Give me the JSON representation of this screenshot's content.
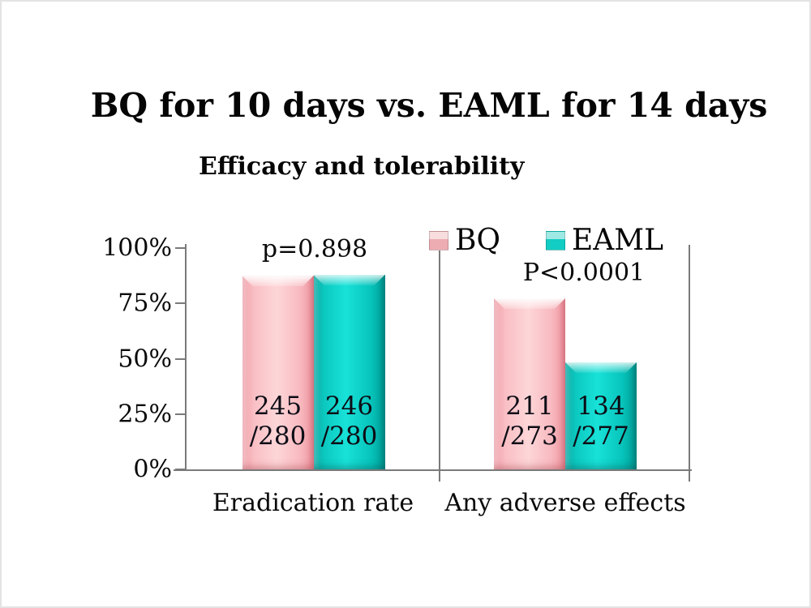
{
  "slide": {
    "title": "BQ for 10 days vs. EAML for 14 days",
    "subtitle": "Efficacy and tolerability"
  },
  "colors": {
    "bq": "#f7b3ba",
    "eaml": "#0fd0c6",
    "axis": "#7a7a7a",
    "text": "#0a0a0a"
  },
  "chart_data": {
    "type": "bar",
    "title": "Efficacy and tolerability",
    "categories": [
      "Eradication rate",
      "Any adverse effects"
    ],
    "series": [
      {
        "name": "BQ",
        "color": "#f7b3ba",
        "values_pct": [
          87.5,
          77.3
        ],
        "fractions": [
          "245/280",
          "211/273"
        ]
      },
      {
        "name": "EAML",
        "color": "#0fd0c6",
        "values_pct": [
          87.9,
          48.4
        ],
        "fractions": [
          "246/280",
          "134/277"
        ]
      }
    ],
    "annotations": [
      {
        "category": "Eradication rate",
        "text": "p=0.898"
      },
      {
        "category": "Any adverse effects",
        "text": "P<0.0001"
      }
    ],
    "xlabel": "",
    "ylabel": "",
    "ylim": [
      0,
      100
    ],
    "yticks": [
      {
        "label": "100%",
        "value": 100
      },
      {
        "label": "75%",
        "value": 75
      },
      {
        "label": "50%",
        "value": 50
      },
      {
        "label": "25%",
        "value": 25
      },
      {
        "label": "0%",
        "value": 0
      }
    ],
    "legend": [
      "BQ",
      "EAML"
    ],
    "legend_position": "top-right",
    "grid": false,
    "groups": [
      {
        "category": "Eradication rate",
        "pvalue": "p=0.898",
        "bars": [
          {
            "series": "BQ",
            "numerator": "245",
            "denominator": "/280",
            "pct": 87.5
          },
          {
            "series": "EAML",
            "numerator": "246",
            "denominator": "/280",
            "pct": 87.9
          }
        ]
      },
      {
        "category": "Any adverse effects",
        "pvalue": "P<0.0001",
        "bars": [
          {
            "series": "BQ",
            "numerator": "211",
            "denominator": "/273",
            "pct": 77.3
          },
          {
            "series": "EAML",
            "numerator": "134",
            "denominator": "/277",
            "pct": 48.4
          }
        ]
      }
    ]
  }
}
